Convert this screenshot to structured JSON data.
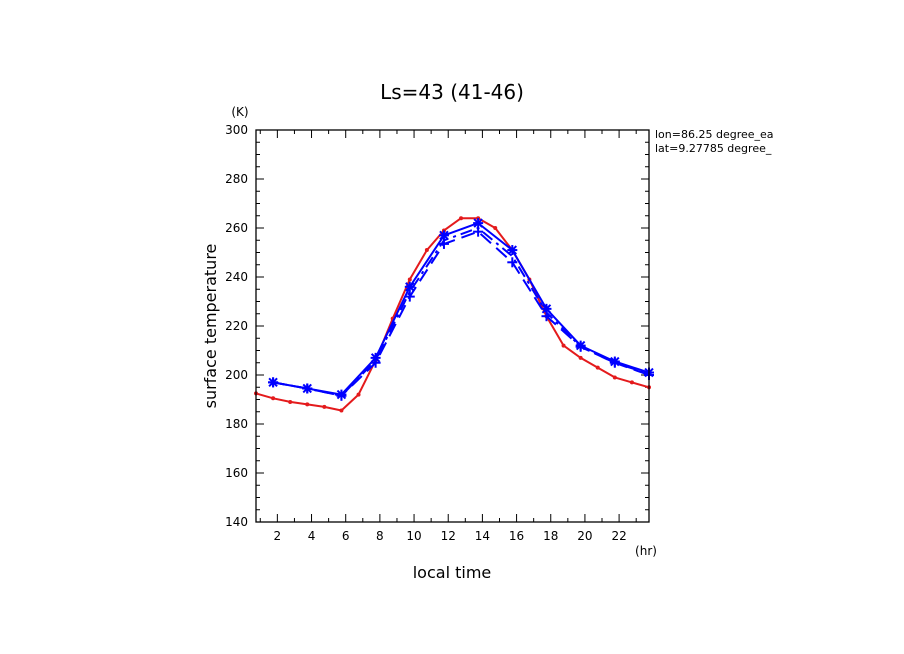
{
  "chart_data": {
    "type": "line",
    "title": "Ls=43 (41-46)",
    "xlabel": "local time",
    "xunit": "(hr)",
    "ylabel": "surface temperature",
    "yunit": "(K)",
    "xlim": [
      0.75,
      23.75
    ],
    "ylim": [
      140,
      300
    ],
    "xticks": [
      2,
      4,
      6,
      8,
      10,
      12,
      14,
      16,
      18,
      20,
      22
    ],
    "yticks": [
      140,
      160,
      180,
      200,
      220,
      240,
      260,
      280,
      300
    ],
    "annotations": [
      "lon=86.25 degree_ea",
      "lat=9.27785 degree_"
    ],
    "series": [
      {
        "name": "red",
        "color": "#e41a1c",
        "style": "solid",
        "marker": "dot",
        "x": [
          0.75,
          1.75,
          2.75,
          3.75,
          4.75,
          5.75,
          6.75,
          7.75,
          8.75,
          9.75,
          10.75,
          11.75,
          12.75,
          13.75,
          14.75,
          15.75,
          16.75,
          17.75,
          18.75,
          19.75,
          20.75,
          21.75,
          22.75,
          23.75
        ],
        "y": [
          192.5,
          190.5,
          189,
          188,
          187,
          185.5,
          192,
          206,
          223,
          239,
          251,
          259,
          264,
          264,
          260,
          251,
          239,
          224,
          212,
          207,
          203,
          199,
          197,
          195
        ]
      },
      {
        "name": "blue-solid",
        "color": "#0000ff",
        "style": "solid",
        "marker": "star",
        "x": [
          1.75,
          3.75,
          5.75,
          7.75,
          9.75,
          11.75,
          13.75,
          15.75,
          17.75,
          19.75,
          21.75,
          23.75
        ],
        "y": [
          197,
          194.5,
          192,
          207,
          236,
          257,
          262,
          251,
          227,
          212,
          205.5,
          201
        ]
      },
      {
        "name": "blue-dashdot",
        "color": "#0000ff",
        "style": "dashdot",
        "marker": "none",
        "x": [
          1.75,
          3.75,
          5.75,
          7.75,
          9.75,
          11.75,
          13.75,
          15.75,
          17.75,
          19.75,
          21.75,
          23.75
        ],
        "y": [
          197,
          194.5,
          191.5,
          206,
          234,
          255,
          260,
          248.5,
          225.5,
          211.5,
          205,
          200.5
        ]
      },
      {
        "name": "blue-dashed",
        "color": "#0000ff",
        "style": "dashed",
        "marker": "plus",
        "x": [
          1.75,
          3.75,
          5.75,
          7.75,
          9.75,
          11.75,
          13.75,
          15.75,
          17.75,
          19.75,
          21.75,
          23.75
        ],
        "y": [
          197,
          194.5,
          191.5,
          205,
          232,
          253.5,
          258.5,
          246,
          224,
          211.5,
          205,
          200
        ]
      }
    ]
  }
}
